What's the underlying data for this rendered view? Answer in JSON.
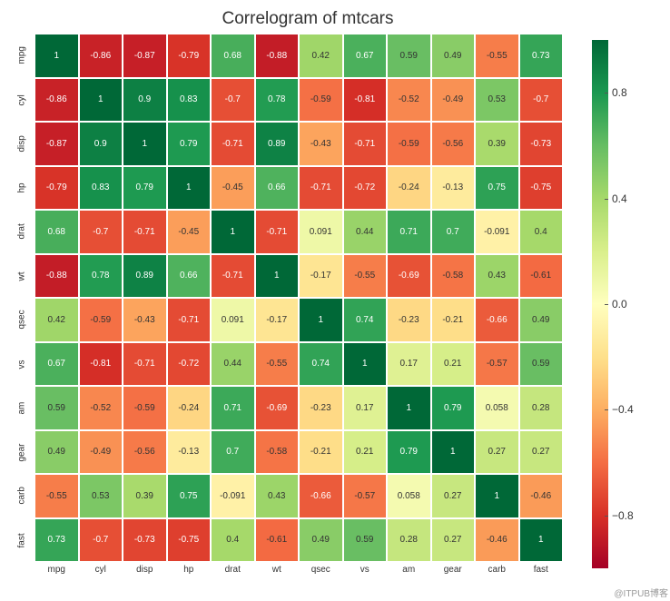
{
  "chart": {
    "title": "Correlogram of mtcars",
    "title_fontsize": 19,
    "background_color": "#ffffff",
    "variables": [
      "mpg",
      "cyl",
      "disp",
      "hp",
      "drat",
      "wt",
      "qsec",
      "vs",
      "am",
      "gear",
      "carb",
      "fast"
    ],
    "matrix": [
      [
        1,
        -0.86,
        -0.87,
        -0.79,
        0.68,
        -0.88,
        0.42,
        0.67,
        0.59,
        0.49,
        -0.55,
        0.73
      ],
      [
        -0.86,
        1,
        0.9,
        0.83,
        -0.7,
        0.78,
        -0.59,
        -0.81,
        -0.52,
        -0.49,
        0.53,
        -0.7
      ],
      [
        -0.87,
        0.9,
        1,
        0.79,
        -0.71,
        0.89,
        -0.43,
        -0.71,
        -0.59,
        -0.56,
        0.39,
        -0.73
      ],
      [
        -0.79,
        0.83,
        0.79,
        1,
        -0.45,
        0.66,
        -0.71,
        -0.72,
        -0.24,
        -0.13,
        0.75,
        -0.75
      ],
      [
        0.68,
        -0.7,
        -0.71,
        -0.45,
        1,
        -0.71,
        0.091,
        0.44,
        0.71,
        0.7,
        -0.091,
        0.4
      ],
      [
        -0.88,
        0.78,
        0.89,
        0.66,
        -0.71,
        1,
        -0.17,
        -0.55,
        -0.69,
        -0.58,
        0.43,
        -0.61
      ],
      [
        0.42,
        -0.59,
        -0.43,
        -0.71,
        0.091,
        -0.17,
        1,
        0.74,
        -0.23,
        -0.21,
        -0.66,
        0.49
      ],
      [
        0.67,
        -0.81,
        -0.71,
        -0.72,
        0.44,
        -0.55,
        0.74,
        1,
        0.17,
        0.21,
        -0.57,
        0.59
      ],
      [
        0.59,
        -0.52,
        -0.59,
        -0.24,
        0.71,
        -0.69,
        -0.23,
        0.17,
        1,
        0.79,
        0.058,
        0.28
      ],
      [
        0.49,
        -0.49,
        -0.56,
        -0.13,
        0.7,
        -0.58,
        -0.21,
        0.21,
        0.79,
        1,
        0.27,
        0.27
      ],
      [
        -0.55,
        0.53,
        0.39,
        0.75,
        -0.091,
        0.43,
        -0.66,
        -0.57,
        0.058,
        0.27,
        1,
        -0.46
      ],
      [
        0.73,
        -0.7,
        -0.73,
        -0.75,
        0.4,
        -0.61,
        0.49,
        0.59,
        0.28,
        0.27,
        -0.46,
        1
      ]
    ],
    "colormap": {
      "name": "RdYlGn",
      "stops": [
        {
          "v": -1.0,
          "color": "#a50026"
        },
        {
          "v": -0.8,
          "color": "#d73027"
        },
        {
          "v": -0.6,
          "color": "#f46d43"
        },
        {
          "v": -0.4,
          "color": "#fdae61"
        },
        {
          "v": -0.2,
          "color": "#fee08b"
        },
        {
          "v": 0.0,
          "color": "#ffffbf"
        },
        {
          "v": 0.2,
          "color": "#d9ef8b"
        },
        {
          "v": 0.4,
          "color": "#a6d96a"
        },
        {
          "v": 0.6,
          "color": "#66bd63"
        },
        {
          "v": 0.8,
          "color": "#1a9850"
        },
        {
          "v": 1.0,
          "color": "#006837"
        }
      ]
    },
    "cell_fontsize": 10,
    "cell_text_light": "#ffffff",
    "cell_text_dark": "#333333",
    "label_fontsize": 10,
    "colorbar": {
      "ticks": [
        0.8,
        0.4,
        0.0,
        -0.4,
        -0.8
      ],
      "tick_labels": [
        "0.8",
        "0.4",
        "0.0",
        "−0.4",
        "−0.8"
      ],
      "fontsize": 12
    },
    "watermark": "@ITPUB博客"
  }
}
